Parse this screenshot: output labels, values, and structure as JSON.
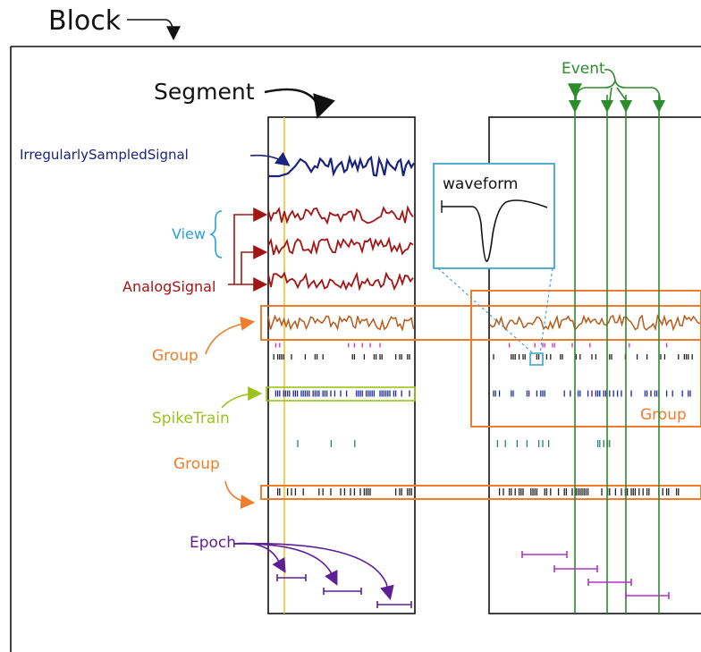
{
  "labels": {
    "block": "Block",
    "segment": "Segment",
    "event": "Event",
    "irregular": "IrregularlySampledSignal",
    "view": "View",
    "analog": "AnalogSignal",
    "group_left_top": "Group",
    "spiketrain": "SpikeTrain",
    "group_left_bottom": "Group",
    "epoch": "Epoch",
    "waveform": "waveform",
    "group_right": "Group"
  },
  "colors": {
    "block": "#111111",
    "irregular": "#1a237e",
    "analog": "#a31515",
    "view": "#29a3d6",
    "group": "#f07d2a",
    "spiketrain": "#9bc31c",
    "event": "#2e8b2e",
    "epoch": "#5e1f96",
    "waveform_box": "#3fa7c9",
    "segment_marker": "#f2c230",
    "grouped_signal": "#b85a1c",
    "spikes_dark": "#222222",
    "spikes_pink": "#d22fb8",
    "spikes_blue": "#1b2a9c",
    "spikes_teal": "#2f7d6f",
    "epoch_bars_right": "#b233c6"
  }
}
